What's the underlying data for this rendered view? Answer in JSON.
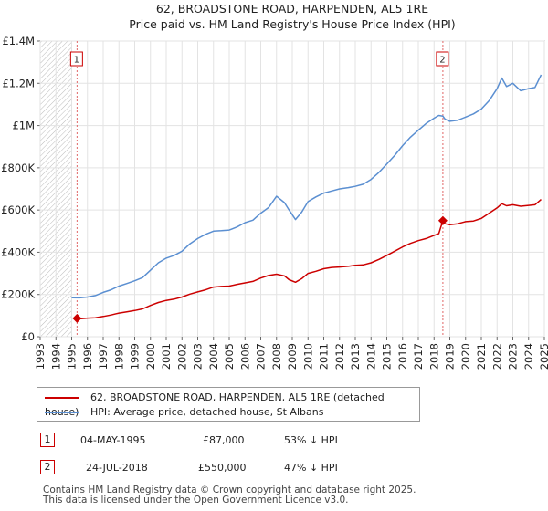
{
  "chart_data": {
    "type": "line",
    "title": "62, BROADSTONE ROAD, HARPENDEN, AL5 1RE",
    "subtitle": "Price paid vs. HM Land Registry's House Price Index (HPI)",
    "xlabel": "",
    "ylabel": "",
    "xlim": [
      1993,
      2025
    ],
    "ylim": [
      0,
      1400000
    ],
    "y_ticks": [
      0,
      200000,
      400000,
      600000,
      800000,
      1000000,
      1200000,
      1400000
    ],
    "y_tick_labels": [
      "£0",
      "£200K",
      "£400K",
      "£600K",
      "£800K",
      "£1M",
      "£1.2M",
      "£1.4M"
    ],
    "x_tick_labels": [
      "1993",
      "1994",
      "1995",
      "1996",
      "1997",
      "1998",
      "1999",
      "2000",
      "2001",
      "2002",
      "2003",
      "2004",
      "2005",
      "2006",
      "2007",
      "2008",
      "2009",
      "2010",
      "2011",
      "2012",
      "2013",
      "2014",
      "2015",
      "2016",
      "2017",
      "2018",
      "2019",
      "2020",
      "2021",
      "2022",
      "2023",
      "2024",
      "2025"
    ],
    "grid": true,
    "series": [
      {
        "name": "62, BROADSTONE ROAD, HARPENDEN, AL5 1RE (detached house)",
        "color": "#cc0000",
        "x": [
          1995.34,
          1995.6,
          1996.0,
          1996.5,
          1997.0,
          1997.5,
          1998.0,
          1998.5,
          1999.0,
          1999.5,
          2000.0,
          2000.5,
          2001.0,
          2001.5,
          2002.0,
          2002.5,
          2003.0,
          2003.5,
          2004.0,
          2004.5,
          2005.0,
          2005.5,
          2006.0,
          2006.5,
          2007.0,
          2007.5,
          2008.0,
          2008.5,
          2008.8,
          2009.2,
          2009.6,
          2010.0,
          2010.5,
          2011.0,
          2011.5,
          2012.0,
          2012.5,
          2013.0,
          2013.5,
          2014.0,
          2014.5,
          2015.0,
          2015.5,
          2016.0,
          2016.5,
          2017.0,
          2017.5,
          2018.0,
          2018.3,
          2018.56,
          2018.7,
          2019.0,
          2019.5,
          2020.0,
          2020.5,
          2021.0,
          2021.5,
          2022.0,
          2022.3,
          2022.6,
          2023.0,
          2023.5,
          2024.0,
          2024.4,
          2024.8
        ],
        "y": [
          87000,
          85000,
          88000,
          90000,
          96000,
          103000,
          112000,
          118000,
          124000,
          132000,
          148000,
          162000,
          172000,
          178000,
          188000,
          202000,
          212000,
          222000,
          235000,
          238000,
          240000,
          248000,
          255000,
          262000,
          278000,
          290000,
          296000,
          288000,
          270000,
          258000,
          275000,
          300000,
          310000,
          322000,
          328000,
          330000,
          333000,
          338000,
          340000,
          350000,
          366000,
          385000,
          405000,
          425000,
          442000,
          455000,
          465000,
          480000,
          488000,
          550000,
          535000,
          530000,
          535000,
          545000,
          548000,
          560000,
          585000,
          610000,
          630000,
          620000,
          625000,
          618000,
          622000,
          625000,
          650000
        ]
      },
      {
        "name": "HPI: Average price, detached house, St Albans",
        "color": "#5b8fd1",
        "x": [
          1995.0,
          1995.5,
          1996.0,
          1996.5,
          1997.0,
          1997.5,
          1998.0,
          1998.5,
          1999.0,
          1999.5,
          2000.0,
          2000.5,
          2001.0,
          2001.5,
          2002.0,
          2002.5,
          2003.0,
          2003.5,
          2004.0,
          2004.5,
          2005.0,
          2005.5,
          2006.0,
          2006.5,
          2007.0,
          2007.5,
          2008.0,
          2008.5,
          2008.8,
          2009.2,
          2009.6,
          2010.0,
          2010.5,
          2011.0,
          2011.5,
          2012.0,
          2012.5,
          2013.0,
          2013.5,
          2014.0,
          2014.5,
          2015.0,
          2015.5,
          2016.0,
          2016.5,
          2017.0,
          2017.5,
          2018.0,
          2018.3,
          2018.56,
          2018.7,
          2019.0,
          2019.5,
          2020.0,
          2020.5,
          2021.0,
          2021.5,
          2022.0,
          2022.3,
          2022.6,
          2023.0,
          2023.5,
          2024.0,
          2024.4,
          2024.8
        ],
        "y": [
          185000,
          184000,
          188000,
          195000,
          210000,
          222000,
          240000,
          252000,
          265000,
          280000,
          315000,
          350000,
          372000,
          385000,
          405000,
          440000,
          465000,
          485000,
          500000,
          502000,
          505000,
          520000,
          540000,
          552000,
          585000,
          612000,
          665000,
          635000,
          600000,
          555000,
          590000,
          640000,
          662000,
          680000,
          690000,
          700000,
          705000,
          712000,
          722000,
          745000,
          778000,
          818000,
          858000,
          905000,
          945000,
          978000,
          1010000,
          1035000,
          1048000,
          1045000,
          1030000,
          1020000,
          1025000,
          1040000,
          1055000,
          1078000,
          1118000,
          1175000,
          1225000,
          1185000,
          1200000,
          1165000,
          1175000,
          1180000,
          1240000
        ]
      }
    ],
    "annotations": [
      {
        "label": "1",
        "x": 1995.34,
        "y": 87000
      },
      {
        "label": "2",
        "x": 2018.56,
        "y": 550000
      }
    ],
    "hatched_range": [
      1993,
      1995
    ]
  },
  "legend": {
    "items": [
      {
        "label": "62, BROADSTONE ROAD, HARPENDEN, AL5 1RE (detached house)",
        "color": "#cc0000"
      },
      {
        "label": "HPI: Average price, detached house, St Albans",
        "color": "#5b8fd1"
      }
    ]
  },
  "sales": [
    {
      "num": "1",
      "date": "04-MAY-1995",
      "price": "£87,000",
      "hpi": "53% ↓ HPI"
    },
    {
      "num": "2",
      "date": "24-JUL-2018",
      "price": "£550,000",
      "hpi": "47% ↓ HPI"
    }
  ],
  "footer": {
    "line1": "Contains HM Land Registry data © Crown copyright and database right 2025.",
    "line2": "This data is licensed under the Open Government Licence v3.0."
  }
}
